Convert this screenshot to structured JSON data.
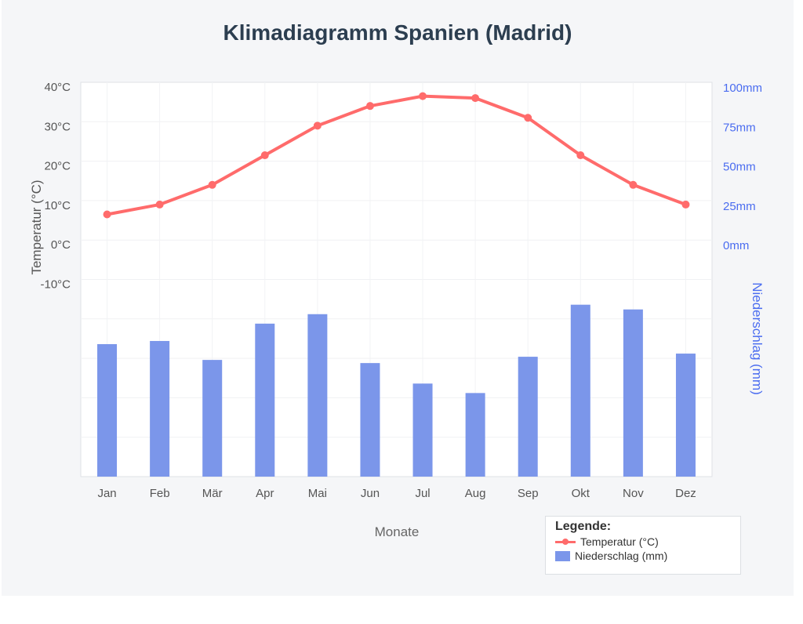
{
  "chart_data": {
    "type": "bar+line",
    "title": "Klimadiagramm Spanien (Madrid)",
    "xlabel": "Monate",
    "ylabel_left": "Temperatur (°C)",
    "ylabel_right": "Niederschlag (mm)",
    "categories": [
      "Jan",
      "Feb",
      "Mär",
      "Apr",
      "Mai",
      "Jun",
      "Jul",
      "Aug",
      "Sep",
      "Okt",
      "Nov",
      "Dez"
    ],
    "left_ticks": [
      "40°C",
      "30°C",
      "20°C",
      "10°C",
      "0°C",
      "-10°C"
    ],
    "right_ticks": [
      "100mm",
      "75mm",
      "50mm",
      "25mm",
      "0mm"
    ],
    "ylim_left": [
      -60,
      40
    ],
    "grid": true,
    "legend_placement": "bottom-right",
    "series": [
      {
        "name": "Temperatur (°C)",
        "type": "line",
        "color": "#ff6b6b",
        "values": [
          6.5,
          9,
          14,
          21.5,
          29,
          34,
          36.5,
          36,
          31,
          21.5,
          14,
          9
        ]
      },
      {
        "name": "Niederschlag (mm)",
        "type": "bar",
        "color": "#7b96ea",
        "values": [
          84,
          86,
          74,
          97,
          103,
          72,
          59,
          53,
          76,
          109,
          106,
          78
        ]
      }
    ]
  },
  "legend": {
    "title": "Legende:"
  },
  "colors": {
    "title": "#2c3e50",
    "right_axis": "#4a6cf0",
    "axis_text": "#555555"
  }
}
